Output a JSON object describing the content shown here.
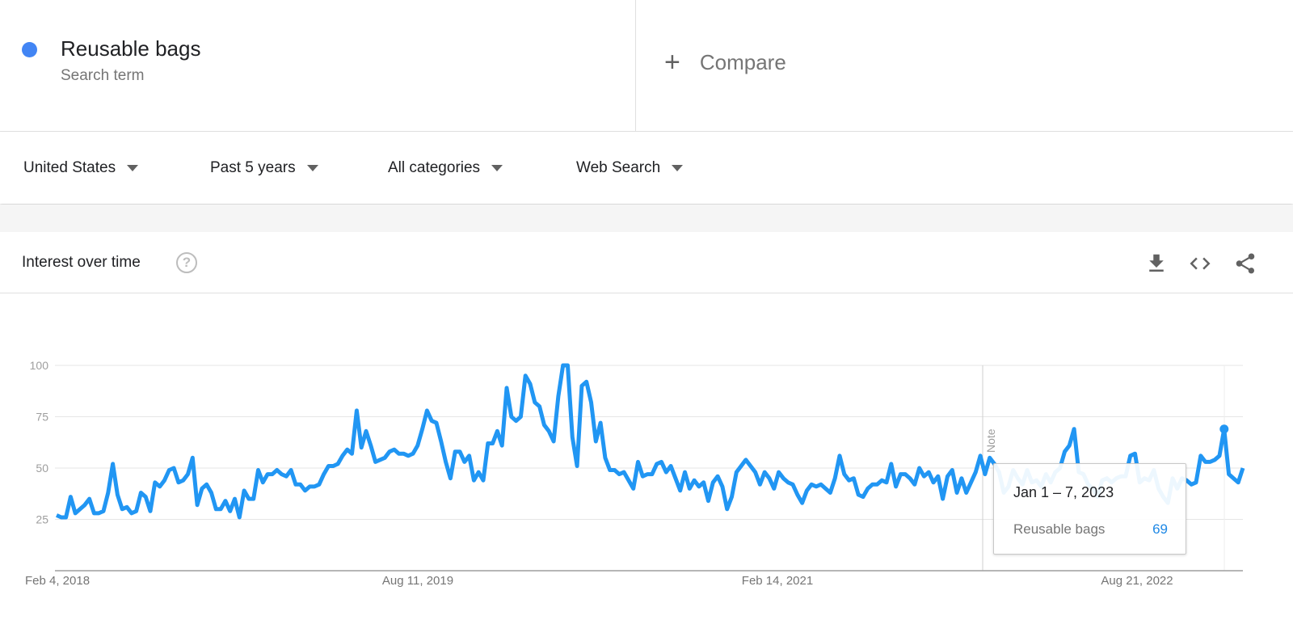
{
  "search_term": {
    "name": "Reusable bags",
    "type": "Search term",
    "color": "#4285f4"
  },
  "compare": {
    "icon": "plus-icon",
    "label": "Compare"
  },
  "filters": [
    {
      "label": "United States"
    },
    {
      "label": "Past 5 years"
    },
    {
      "label": "All categories"
    },
    {
      "label": "Web Search"
    }
  ],
  "card": {
    "title": "Interest over time",
    "help_icon": "?",
    "actions": [
      "download-icon",
      "embed-icon",
      "share-icon"
    ]
  },
  "chart_data": {
    "type": "line",
    "title": "",
    "xlabel": "",
    "ylabel": "",
    "ylim": [
      0,
      100
    ],
    "y_ticks": [
      25,
      50,
      75,
      100
    ],
    "x_tick_labels": [
      "Feb 4, 2018",
      "Aug 11, 2019",
      "Feb 14, 2021",
      "Aug 21, 2022"
    ],
    "grid": true,
    "series": [
      {
        "name": "Reusable bags",
        "color": "#2196f3",
        "values": [
          27,
          26,
          26,
          36,
          28,
          30,
          32,
          35,
          28,
          28,
          29,
          38,
          52,
          37,
          30,
          31,
          28,
          29,
          38,
          36,
          29,
          43,
          41,
          44,
          49,
          50,
          43,
          44,
          47,
          55,
          32,
          40,
          42,
          38,
          30,
          30,
          34,
          29,
          35,
          26,
          39,
          35,
          35,
          49,
          43,
          47,
          47,
          49,
          47,
          46,
          49,
          42,
          42,
          39,
          41,
          41,
          42,
          47,
          51,
          51,
          52,
          56,
          59,
          57,
          78,
          60,
          68,
          61,
          53,
          54,
          55,
          58,
          59,
          57,
          57,
          56,
          57,
          61,
          69,
          78,
          73,
          72,
          63,
          53,
          45,
          58,
          58,
          53,
          56,
          44,
          48,
          44,
          62,
          62,
          68,
          61,
          89,
          75,
          73,
          75,
          95,
          91,
          82,
          80,
          71,
          68,
          63,
          85,
          100,
          100,
          65,
          51,
          90,
          92,
          82,
          63,
          72,
          55,
          49,
          49,
          47,
          48,
          44,
          40,
          53,
          46,
          47,
          47,
          52,
          53,
          48,
          51,
          45,
          39,
          48,
          40,
          44,
          41,
          43,
          34,
          43,
          46,
          41,
          30,
          36,
          48,
          51,
          54,
          51,
          48,
          42,
          48,
          45,
          40,
          48,
          45,
          43,
          42,
          37,
          33,
          39,
          42,
          41,
          42,
          40,
          38,
          45,
          56,
          47,
          44,
          45,
          37,
          36,
          40,
          42,
          42,
          44,
          43,
          52,
          41,
          47,
          47,
          45,
          42,
          50,
          46,
          48,
          43,
          46,
          35,
          46,
          49,
          38,
          45,
          38,
          43,
          48,
          56,
          47,
          55,
          52,
          48,
          38,
          41,
          49,
          45,
          42,
          49,
          43,
          44,
          41,
          47,
          43,
          48,
          50,
          58,
          61,
          69,
          48,
          47,
          42,
          40,
          36,
          44,
          45,
          43,
          45,
          46,
          46,
          56,
          57,
          43,
          45,
          44,
          49,
          40,
          36,
          33,
          45,
          40,
          45,
          44,
          42,
          43,
          56,
          53,
          53,
          54,
          56,
          69,
          47,
          45,
          43,
          50
        ]
      }
    ],
    "annotation": "Note",
    "tooltip": {
      "date": "Jan 1 – 7, 2023",
      "series": "Reusable bags",
      "value": "69"
    }
  }
}
